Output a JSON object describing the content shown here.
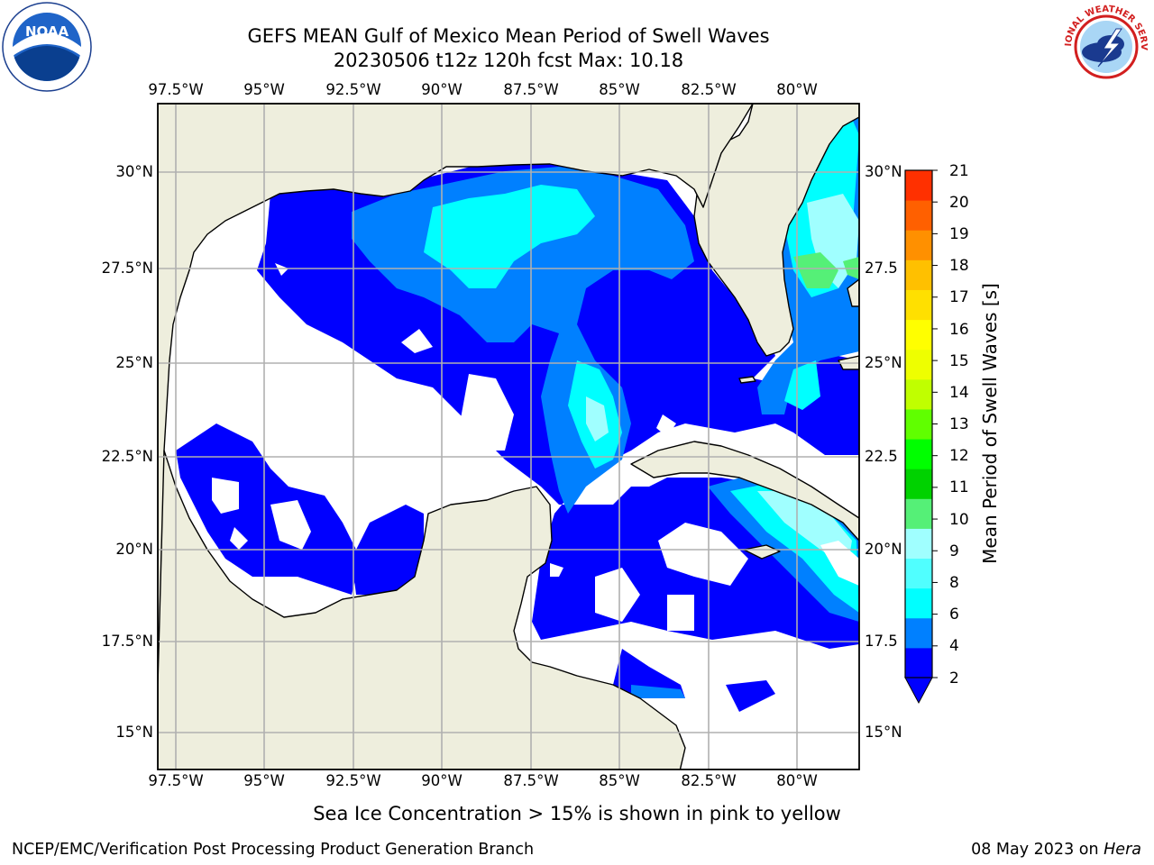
{
  "title": {
    "line1": "GEFS MEAN Gulf of Mexico Mean Period of Swell Waves",
    "line2": "20230506 t12z 120h fcst   Max: 10.18"
  },
  "map": {
    "region": "Gulf of Mexico",
    "parameter": "Mean Period of Swell Waves",
    "max_value": 10.18,
    "lon_labels_top": [
      "97.5°W",
      "95°W",
      "92.5°W",
      "90°W",
      "87.5°W",
      "85°W",
      "82.5°W",
      "80°W"
    ],
    "lon_labels_bottom": [
      "97.5°W",
      "95°W",
      "92.5°W",
      "90°W",
      "87.5°W",
      "85°W",
      "82.5°W",
      "80°W"
    ],
    "lat_labels_left": [
      "30°N",
      "27.5°N",
      "25°N",
      "22.5°N",
      "20°N",
      "17.5°N",
      "15°N"
    ],
    "lat_labels_right": [
      "30°N",
      "27.5",
      "25°N",
      "22.5",
      "20°N",
      "17.5",
      "15°N"
    ],
    "colors": {
      "land": "#eeeedd",
      "ocean_below_min": "#ffffff",
      "grid": "#b0b0b0"
    }
  },
  "colorbar": {
    "label": "Mean Period of Swell Waves [s]",
    "ticks": [
      "21",
      "20",
      "19",
      "18",
      "17",
      "16",
      "15",
      "14",
      "13",
      "12",
      "11",
      "10",
      "9",
      "8",
      "6",
      "4",
      "2"
    ],
    "colors": [
      "#0000ff",
      "#0080ff",
      "#00ffff",
      "#50ffff",
      "#a0ffff",
      "#55f077",
      "#00d200",
      "#00ff00",
      "#60ff00",
      "#c0ff00",
      "#eeff00",
      "#ffff00",
      "#ffe000",
      "#ffc000",
      "#ff9000",
      "#ff6000",
      "#ff3000",
      "#ff0000"
    ]
  },
  "logos": {
    "left": "NOAA",
    "right": "NATIONAL WEATHER SERVICE"
  },
  "footnote": "Sea Ice Concentration > 15% is shown in pink to yellow",
  "footer": {
    "left": "NCEP/EMC/Verification Post Processing Product Generation Branch",
    "right_prefix": "08 May 2023 on ",
    "right_machine": "Hera"
  }
}
